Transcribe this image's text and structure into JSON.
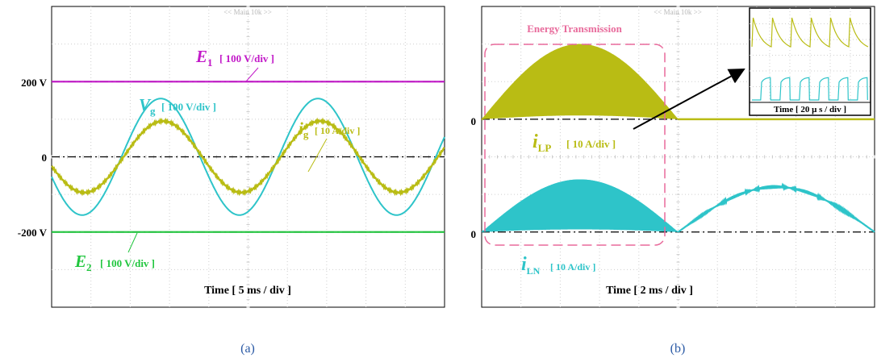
{
  "chart_data": [
    {
      "panel": "(a)",
      "type": "line",
      "top_label": "<< Main 10k >>",
      "axis": {
        "ylim": [
          -400,
          400
        ],
        "y_per_div": 100,
        "x_per_div_ms": 5,
        "x_span_ms": 50,
        "grid": true
      },
      "tick_labels": [
        {
          "text": "200 V",
          "value": 200
        },
        {
          "text": "0",
          "value": 0
        },
        {
          "text": "-200 V",
          "value": -200
        }
      ],
      "time_label": "Time [ 5 ms / div ]",
      "series": [
        {
          "key": "E1",
          "kind": "dc",
          "value": 200,
          "color": "#c219c8",
          "label": {
            "base": "E",
            "sub": "1",
            "scale": "[ 100 V/div ]"
          }
        },
        {
          "key": "Vg",
          "kind": "sine",
          "amplitude": 155,
          "frequency_hz": 50,
          "phase_deg": 200,
          "color": "#2ec4c9",
          "label": {
            "base": "V",
            "sub": "g",
            "scale": "[ 100 V/div ]"
          }
        },
        {
          "key": "ig",
          "kind": "sine",
          "amplitude": 95,
          "frequency_hz": 50,
          "phase_deg": 195,
          "color": "#b9bc14",
          "label": {
            "base": "i",
            "sub": "g",
            "scale": "[ 10 A/div ]"
          }
        },
        {
          "key": "E2",
          "kind": "dc",
          "value": -200,
          "color": "#22c63f",
          "label": {
            "base": "E",
            "sub": "2",
            "scale": "[ 100 V/div ]"
          }
        }
      ],
      "caption": "(a)"
    },
    {
      "panel": "(b)",
      "type": "line",
      "top_label": "<< Main 10k >>",
      "axis": {
        "x_per_div_ms": 2,
        "x_span_ms": 20,
        "grid": true
      },
      "tick_labels": [
        {
          "text": "0",
          "trace": "iLP"
        },
        {
          "text": "0",
          "trace": "iLN"
        }
      ],
      "time_label": "Time [ 2 ms / div ]",
      "box_label": "Energy Transmission",
      "series": [
        {
          "key": "iLP",
          "kind": "pulsed-half-sine",
          "peak_divs": 2.0,
          "active_ms": [
            0,
            10
          ],
          "color": "#b9bc14",
          "label": {
            "base": "i",
            "sub": "LP",
            "scale": "[ 10 A/div ]"
          }
        },
        {
          "key": "iLN",
          "kind": "pulsed-half-sine",
          "peak_divs": 1.4,
          "active_ms": [
            0,
            10
          ],
          "color": "#2ec4c9",
          "label": {
            "base": "i",
            "sub": "LN",
            "scale": "[ 10 A/div ]"
          }
        },
        {
          "key": "iLN_tail",
          "kind": "half-sine",
          "peak_divs": 1.2,
          "active_ms": [
            10,
            20
          ],
          "color": "#2ec4c9"
        }
      ],
      "inset": {
        "time_label": "Time [ 20 μ s / div ]",
        "x_per_div_us": 20
      },
      "caption": "(b)"
    }
  ]
}
